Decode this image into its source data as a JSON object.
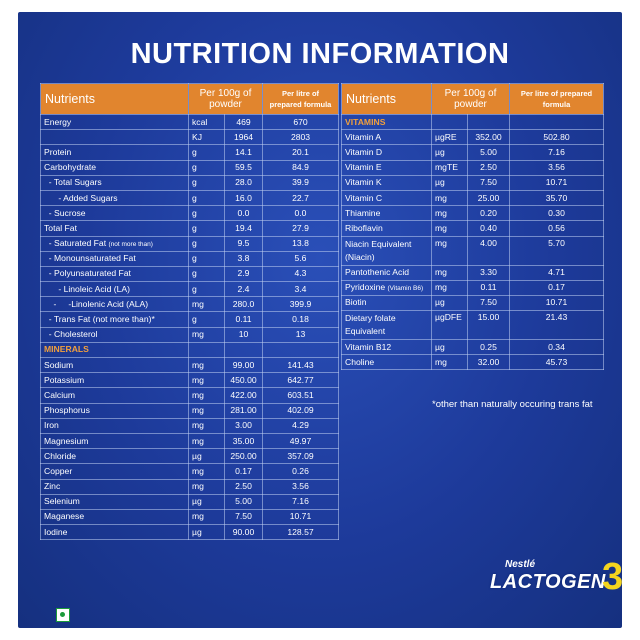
{
  "title": "NUTRITION INFORMATION",
  "headers": {
    "nutrients": "Nutrients",
    "per_100g": "Per 100g of powder",
    "per_litre": "Per litre of prepared formula"
  },
  "left_rows": [
    {
      "name": "Energy",
      "unit": "kcal",
      "per100": "469",
      "perL": "670"
    },
    {
      "name": "",
      "unit": "KJ",
      "per100": "1964",
      "perL": "2803"
    },
    {
      "name": "Protein",
      "unit": "g",
      "per100": "14.1",
      "perL": "20.1"
    },
    {
      "name": "Carbohydrate",
      "unit": "g",
      "per100": "59.5",
      "perL": "84.9"
    },
    {
      "name": "  - Total Sugars",
      "unit": "g",
      "per100": "28.0",
      "perL": "39.9"
    },
    {
      "name": "      - Added Sugars",
      "unit": "g",
      "per100": "16.0",
      "perL": "22.7"
    },
    {
      "name": "  - Sucrose",
      "unit": "g",
      "per100": "0.0",
      "perL": "0.0"
    },
    {
      "name": "Total Fat",
      "unit": "g",
      "per100": "19.4",
      "perL": "27.9"
    },
    {
      "name": "  - Saturated Fat",
      "note": "(not more than)",
      "unit": "g",
      "per100": "9.5",
      "perL": "13.8"
    },
    {
      "name": "  - Monounsaturated Fat",
      "unit": "g",
      "per100": "3.8",
      "perL": "5.6"
    },
    {
      "name": "  - Polyunsaturated Fat",
      "unit": "g",
      "per100": "2.9",
      "perL": "4.3"
    },
    {
      "name": "      - Linoleic Acid (LA)",
      "unit": "g",
      "per100": "2.4",
      "perL": "3.4"
    },
    {
      "name": "    -     -Linolenic Acid (ALA)",
      "unit": "mg",
      "per100": "280.0",
      "perL": "399.9"
    },
    {
      "name": "  - Trans Fat (not more than)*",
      "unit": "g",
      "per100": "0.11",
      "perL": "0.18"
    },
    {
      "name": "  - Cholesterol",
      "unit": "mg",
      "per100": "10",
      "perL": "13"
    },
    {
      "section": "MINERALS"
    },
    {
      "name": "Sodium",
      "unit": "mg",
      "per100": "99.00",
      "perL": "141.43"
    },
    {
      "name": "Potassium",
      "unit": "mg",
      "per100": "450.00",
      "perL": "642.77"
    },
    {
      "name": "Calcium",
      "unit": "mg",
      "per100": "422.00",
      "perL": "603.51"
    },
    {
      "name": "Phosphorus",
      "unit": "mg",
      "per100": "281.00",
      "perL": "402.09"
    },
    {
      "name": "Iron",
      "unit": "mg",
      "per100": "3.00",
      "perL": "4.29"
    },
    {
      "name": "Magnesium",
      "unit": "mg",
      "per100": "35.00",
      "perL": "49.97"
    },
    {
      "name": "Chloride",
      "unit": "µg",
      "per100": "250.00",
      "perL": "357.09"
    },
    {
      "name": "Copper",
      "unit": "mg",
      "per100": "0.17",
      "perL": "0.26"
    },
    {
      "name": "Zinc",
      "unit": "mg",
      "per100": "2.50",
      "perL": "3.56"
    },
    {
      "name": "Selenium",
      "unit": "µg",
      "per100": "5.00",
      "perL": "7.16"
    },
    {
      "name": "Maganese",
      "unit": "mg",
      "per100": "7.50",
      "perL": "10.71"
    },
    {
      "name": "Iodine",
      "unit": "µg",
      "per100": "90.00",
      "perL": "128.57"
    }
  ],
  "right_rows": [
    {
      "section": "VITAMINS"
    },
    {
      "name": "Vitamin A",
      "unit": "µgRE",
      "per100": "352.00",
      "perL": "502.80"
    },
    {
      "name": "Vitamin D",
      "unit": "µg",
      "per100": "5.00",
      "perL": "7.16"
    },
    {
      "name": "Vitamin E",
      "unit": "mgTE",
      "per100": "2.50",
      "perL": "3.56"
    },
    {
      "name": "Vitamin K",
      "unit": "µg",
      "per100": "7.50",
      "perL": "10.71"
    },
    {
      "name": "Vitamin C",
      "unit": "mg",
      "per100": "25.00",
      "perL": "35.70"
    },
    {
      "name": "Thiamine",
      "unit": "mg",
      "per100": "0.20",
      "perL": "0.30"
    },
    {
      "name": "Riboflavin",
      "unit": "mg",
      "per100": "0.40",
      "perL": "0.56"
    },
    {
      "name": "Niacin Equivalent",
      "name2": "(Niacin)",
      "unit": "mg",
      "per100": "4.00",
      "perL": "5.70"
    },
    {
      "name": "Pantothenic Acid",
      "unit": "mg",
      "per100": "3.30",
      "perL": "4.71"
    },
    {
      "name": "Pyridoxine",
      "note": "(Vitamin B6)",
      "unit": "mg",
      "per100": "0.11",
      "perL": "0.17"
    },
    {
      "name": "Biotin",
      "unit": "µg",
      "per100": "7.50",
      "perL": "10.71"
    },
    {
      "name": "Dietary folate",
      "name2": "Equivalent",
      "unit": "µgDFE",
      "per100": "15.00",
      "perL": "21.43"
    },
    {
      "name": "Vitamin B12",
      "unit": "µg",
      "per100": "0.25",
      "perL": "0.34"
    },
    {
      "name": "Choline",
      "unit": "mg",
      "per100": "32.00",
      "perL": "45.73"
    }
  ],
  "footnote": "*other than naturally occuring trans fat",
  "brand": {
    "maker": "Nestlé",
    "product": "LACTOGEN",
    "stage": "3"
  },
  "colors": {
    "background": "#1d3a9a",
    "header": "#e1852e",
    "section": "#f2a03d",
    "stage_number": "#f4d41e"
  }
}
